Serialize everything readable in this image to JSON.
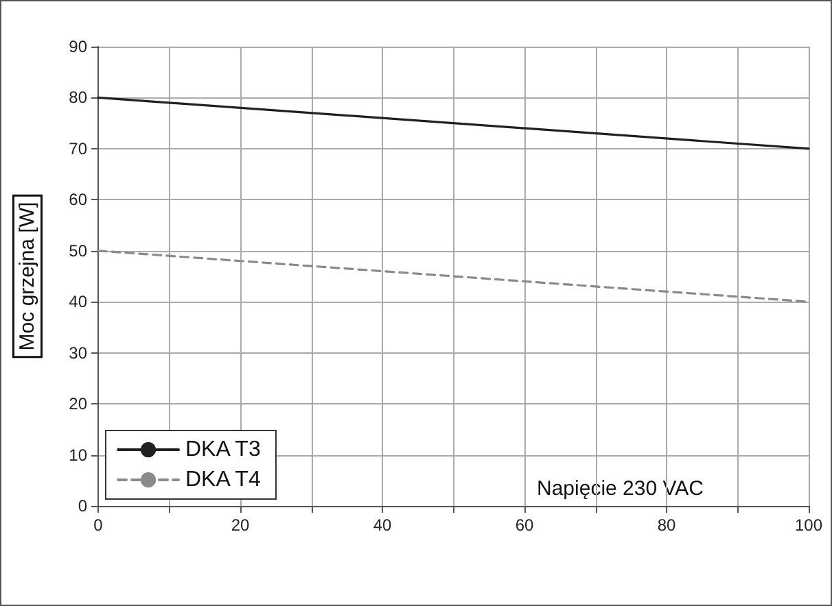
{
  "chart_data": {
    "type": "line",
    "ylabel": "Moc grzejna [W]",
    "annotations": [
      "Napięcie 230 VAC"
    ],
    "x": [
      0,
      100
    ],
    "series": [
      {
        "name": "DKA T3",
        "color": "#231f20",
        "values": [
          80,
          70
        ],
        "line_style": "solid"
      },
      {
        "name": "DKA T4",
        "color": "#8a8a8a",
        "values": [
          50,
          40
        ],
        "line_style": "dashed"
      }
    ],
    "xlim": [
      0,
      100
    ],
    "xticks": [
      0,
      {
        "value": 10,
        "label": null
      },
      20,
      {
        "value": 30,
        "label": null
      },
      40,
      {
        "value": 50,
        "label": null
      },
      60,
      {
        "value": 70,
        "label": null
      },
      80,
      {
        "value": 90,
        "label": null
      },
      100
    ],
    "ylim": [
      0,
      90
    ],
    "yticks": [
      0,
      10,
      20,
      30,
      40,
      50,
      60,
      70,
      80,
      90
    ],
    "grid": true,
    "legend": "bottom left",
    "marker": "none"
  }
}
